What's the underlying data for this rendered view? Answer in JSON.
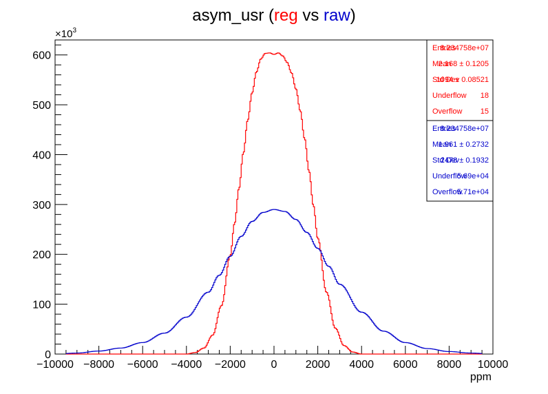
{
  "chart_data": {
    "type": "line",
    "title": {
      "prefix": "asym_usr (",
      "reg": "reg",
      "vs": " vs ",
      "raw": "raw",
      "suffix": ")"
    },
    "xlabel": "ppm",
    "ylabel": "",
    "y_multiplier": "×10",
    "y_multiplier_exp": "3",
    "xlim": [
      -10000,
      10000
    ],
    "ylim": [
      0,
      630
    ],
    "x_ticks": [
      -10000,
      -8000,
      -6000,
      -4000,
      -2000,
      0,
      2000,
      4000,
      6000,
      8000,
      10000
    ],
    "x_tick_labels": [
      "−10000",
      "−8000",
      "−6000",
      "−4000",
      "−2000",
      "0",
      "2000",
      "4000",
      "6000",
      "8000",
      "10000"
    ],
    "y_ticks": [
      0,
      100,
      200,
      300,
      400,
      500,
      600
    ],
    "y_tick_labels": [
      "0",
      "100",
      "200",
      "300",
      "400",
      "500",
      "600"
    ],
    "grid": false,
    "series": [
      {
        "name": "reg",
        "color": "#ff0000",
        "x": [
          -10000,
          -4000,
          -3600,
          -3200,
          -2800,
          -2400,
          -2000,
          -1800,
          -1600,
          -1400,
          -1200,
          -1000,
          -800,
          -600,
          -400,
          -200,
          0,
          200,
          400,
          600,
          800,
          1000,
          1200,
          1400,
          1600,
          1800,
          2000,
          2400,
          2800,
          3200,
          3600,
          4000,
          10000
        ],
        "y": [
          0,
          0,
          3,
          12,
          38,
          97,
          197,
          262,
          332,
          403,
          469,
          524,
          566,
          592,
          603,
          604,
          601,
          604,
          598,
          585,
          564,
          532,
          488,
          432,
          367,
          298,
          232,
          124,
          52,
          17,
          4,
          0,
          0
        ]
      },
      {
        "name": "raw",
        "color": "#0000cc",
        "x": [
          -10000,
          -9000,
          -8000,
          -7000,
          -6000,
          -5000,
          -4000,
          -3000,
          -2500,
          -2000,
          -1500,
          -1000,
          -500,
          0,
          500,
          1000,
          1500,
          2000,
          2500,
          3000,
          4000,
          5000,
          6000,
          7000,
          8000,
          9000,
          10000
        ],
        "y": [
          0,
          2,
          6,
          12,
          23,
          42,
          74,
          124,
          158,
          196,
          236,
          266,
          284,
          290,
          286,
          270,
          244,
          212,
          176,
          140,
          84,
          46,
          23,
          11,
          5,
          2,
          0
        ]
      }
    ],
    "stats": [
      {
        "name": "reg",
        "color": "#ff0000",
        "rows": [
          {
            "label": "Entries",
            "value": "8.234758e+07"
          },
          {
            "label": "Mean",
            "value": "2.168  ± 0.1205"
          },
          {
            "label": "Std Dev",
            "value": "1094  ± 0.08521"
          },
          {
            "label": "Underflow",
            "value": "18"
          },
          {
            "label": "Overflow",
            "value": "15"
          }
        ]
      },
      {
        "name": "raw",
        "color": "#0000cc",
        "rows": [
          {
            "label": "Entries",
            "value": "8.234758e+07"
          },
          {
            "label": "Mean",
            "value": "1.961 ± 0.2732"
          },
          {
            "label": "Std Dev",
            "value": "2478 ± 0.1932"
          },
          {
            "label": "Underflow",
            "value": "5.69e+04"
          },
          {
            "label": "Overflow",
            "value": "5.71e+04"
          }
        ]
      }
    ]
  }
}
